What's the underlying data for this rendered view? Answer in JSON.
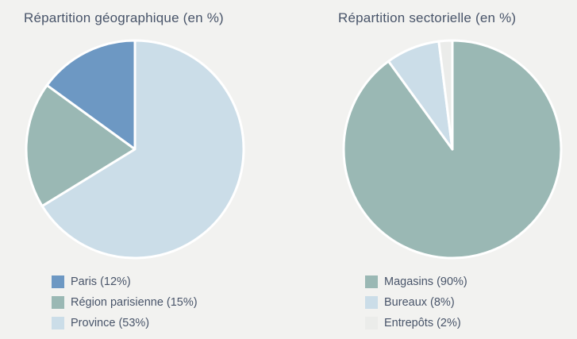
{
  "page": {
    "background_color": "#f2f2f0",
    "text_color": "#485469",
    "slice_border_color": "#ffffff"
  },
  "chart_data": [
    {
      "type": "pie",
      "title": "Répartition géographique (en %)",
      "legend_position": "bottom-left",
      "start_angle": "top",
      "direction": "counterclockwise",
      "slices": [
        {
          "label": "Paris",
          "value": 12,
          "legend_label": "Paris (12%)",
          "color": "#6d98c3"
        },
        {
          "label": "Région parisienne",
          "value": 15,
          "legend_label": "Région parisienne (15%)",
          "color": "#9ab8b4"
        },
        {
          "label": "Province",
          "value": 53,
          "legend_label": "Province (53%)",
          "color": "#cbdde8"
        }
      ]
    },
    {
      "type": "pie",
      "title": "Répartition sectorielle (en %)",
      "legend_position": "bottom-left",
      "start_angle": "top",
      "direction": "clockwise",
      "slices": [
        {
          "label": "Magasins",
          "value": 90,
          "legend_label": "Magasins (90%)",
          "color": "#9ab8b4"
        },
        {
          "label": "Bureaux",
          "value": 8,
          "legend_label": "Bureaux (8%)",
          "color": "#cbdde8"
        },
        {
          "label": "Entrepôts",
          "value": 2,
          "legend_label": "Entrepôts (2%)",
          "color": "#ebecea"
        }
      ]
    }
  ]
}
